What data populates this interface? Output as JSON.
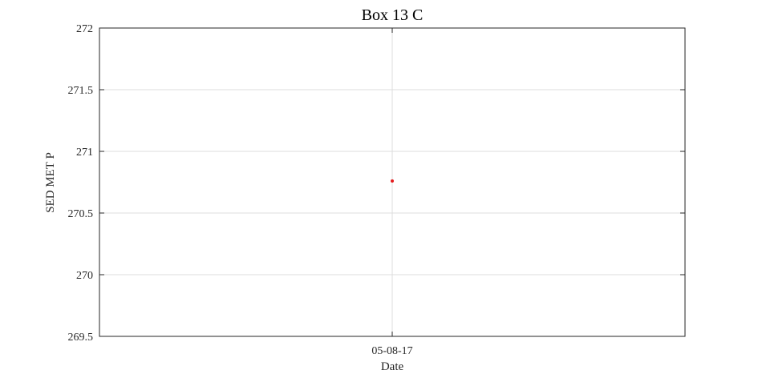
{
  "chart_data": {
    "type": "scatter",
    "title": "Box 13 C",
    "xlabel": "Date",
    "ylabel": "SED MET P",
    "ylim": [
      269.5,
      272
    ],
    "yticks": [
      269.5,
      270,
      270.5,
      271,
      271.5,
      272
    ],
    "ytick_labels": [
      "269.5",
      "270",
      "270.5",
      "271",
      "271.5",
      "272"
    ],
    "x_categories": [
      "05-08-17"
    ],
    "xtick_labels": [
      "05-08-17"
    ],
    "points": [
      {
        "x": "05-08-17",
        "y": 270.76
      }
    ],
    "grid": true,
    "marker_color": "#e41a1c",
    "grid_color": "#dcdcdc",
    "axis_color": "#262626"
  }
}
